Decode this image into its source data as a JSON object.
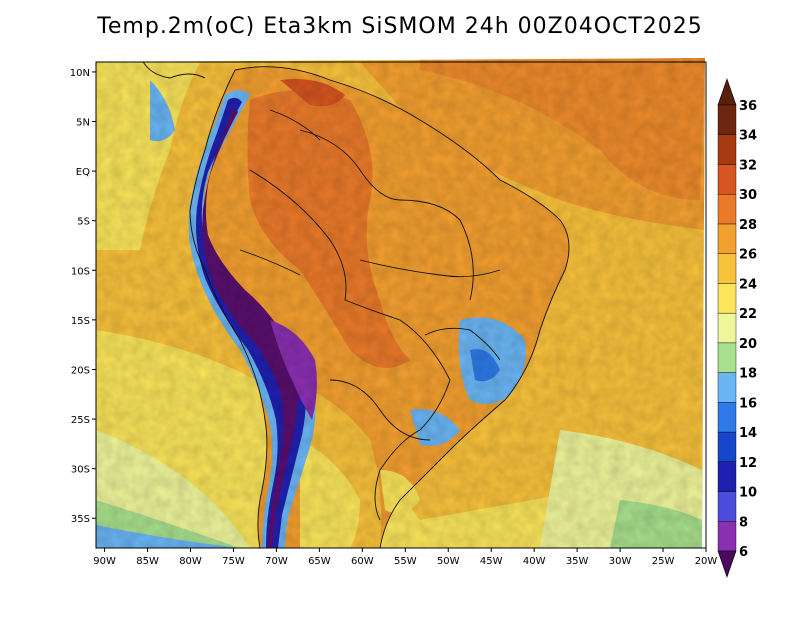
{
  "map": {
    "title": "Temp.2m(oC) Eta3km SiSMOM 24h 00Z04OCT2025",
    "variable": "Temp.2m",
    "units": "oC",
    "model": "Eta3km SiSMOM",
    "forecast": "24h",
    "valid": "00Z04OCT2025",
    "lat_axis": {
      "ticks": [
        {
          "value": 10,
          "label": "10N"
        },
        {
          "value": 5,
          "label": "5N"
        },
        {
          "value": 0,
          "label": "EQ"
        },
        {
          "value": -5,
          "label": "5S"
        },
        {
          "value": -10,
          "label": "10S"
        },
        {
          "value": -15,
          "label": "15S"
        },
        {
          "value": -20,
          "label": "20S"
        },
        {
          "value": -25,
          "label": "25S"
        },
        {
          "value": -30,
          "label": "30S"
        },
        {
          "value": -35,
          "label": "35S"
        }
      ]
    },
    "lon_axis": {
      "ticks": [
        {
          "value": -90,
          "label": "90W"
        },
        {
          "value": -85,
          "label": "85W"
        },
        {
          "value": -80,
          "label": "80W"
        },
        {
          "value": -75,
          "label": "75W"
        },
        {
          "value": -70,
          "label": "70W"
        },
        {
          "value": -65,
          "label": "65W"
        },
        {
          "value": -60,
          "label": "60W"
        },
        {
          "value": -55,
          "label": "55W"
        },
        {
          "value": -50,
          "label": "50W"
        },
        {
          "value": -45,
          "label": "45W"
        },
        {
          "value": -40,
          "label": "40W"
        },
        {
          "value": -35,
          "label": "35W"
        },
        {
          "value": -30,
          "label": "30W"
        },
        {
          "value": -25,
          "label": "25W"
        },
        {
          "value": -20,
          "label": "20W"
        }
      ]
    },
    "extent": {
      "lon_min": -91,
      "lon_max": -20,
      "lat_min": -38,
      "lat_max": 11
    }
  },
  "colorbar": {
    "levels": [
      {
        "value": 6,
        "color": "#5a0f6e"
      },
      {
        "value": 8,
        "color": "#8a2fb0"
      },
      {
        "value": 10,
        "color": "#4d4ddb"
      },
      {
        "value": 12,
        "color": "#2020b0"
      },
      {
        "value": 14,
        "color": "#1646c9"
      },
      {
        "value": 16,
        "color": "#2e7ae8"
      },
      {
        "value": 18,
        "color": "#6ab6f5"
      },
      {
        "value": 20,
        "color": "#a8e08e"
      },
      {
        "value": 22,
        "color": "#eef59a"
      },
      {
        "value": 24,
        "color": "#fbe55a"
      },
      {
        "value": 26,
        "color": "#f9c23c"
      },
      {
        "value": 28,
        "color": "#f4a030"
      },
      {
        "value": 30,
        "color": "#ea7a2a"
      },
      {
        "value": 32,
        "color": "#d75520"
      },
      {
        "value": 34,
        "color": "#a83a12"
      },
      {
        "value": 36,
        "color": "#6e2610"
      }
    ],
    "under_color": "#4a0a5e",
    "over_color": "#5a1e0c"
  }
}
